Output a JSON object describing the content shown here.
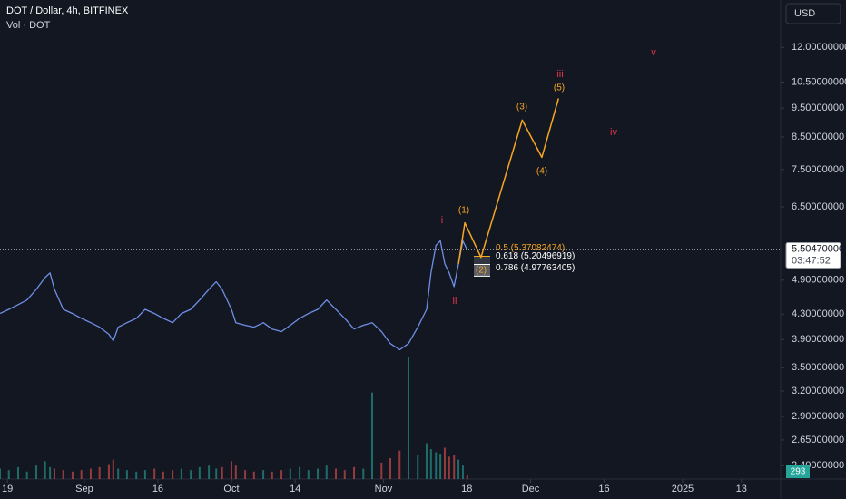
{
  "chart_data": {
    "type": "line",
    "title": "DOT / Dollar, 4h, BITFINEX",
    "subtitle": "Vol · DOT",
    "currency": "USD",
    "log_scale": true,
    "grid": false,
    "xlim": [
      -17.2,
      142
    ],
    "xticks": [
      {
        "value": -15.7,
        "label": "19"
      },
      {
        "value": 0,
        "label": "Sep"
      },
      {
        "value": 15,
        "label": "16"
      },
      {
        "value": 30,
        "label": "Oct"
      },
      {
        "value": 43,
        "label": "14"
      },
      {
        "value": 61,
        "label": "Nov"
      },
      {
        "value": 78,
        "label": "18"
      },
      {
        "value": 91,
        "label": "Dec"
      },
      {
        "value": 106,
        "label": "16"
      },
      {
        "value": 122,
        "label": "2025"
      },
      {
        "value": 134,
        "label": "13"
      }
    ],
    "ylim": [
      2.28,
      14.4
    ],
    "yticks": [
      {
        "value": 12,
        "label": "12.00000000"
      },
      {
        "value": 10.5,
        "label": "10.50000000"
      },
      {
        "value": 9.5,
        "label": "9.50000000"
      },
      {
        "value": 8.5,
        "label": "8.50000000"
      },
      {
        "value": 7.5,
        "label": "7.50000000"
      },
      {
        "value": 6.5,
        "label": "6.50000000"
      },
      {
        "value": 4.9,
        "label": "4.90000000"
      },
      {
        "value": 4.3,
        "label": "4.30000000"
      },
      {
        "value": 3.9,
        "label": "3.90000000"
      },
      {
        "value": 3.5,
        "label": "3.50000000"
      },
      {
        "value": 3.2,
        "label": "3.20000000"
      },
      {
        "value": 2.9,
        "label": "2.90000000"
      },
      {
        "value": 2.65,
        "label": "2.65000000"
      },
      {
        "value": 2.4,
        "label": "2.40000000"
      }
    ],
    "x": [
      -17.2,
      -15.4,
      -13.5,
      -11.7,
      -9.8,
      -8.0,
      -7.0,
      -6.1,
      -4.3,
      -2.4,
      -0.6,
      1.3,
      3.1,
      5.0,
      5.9,
      6.9,
      8.7,
      10.6,
      12.4,
      14.3,
      16.1,
      18.0,
      19.8,
      21.7,
      23.5,
      25.4,
      26.9,
      28.1,
      30.0,
      30.9,
      32.8,
      34.6,
      36.5,
      38.3,
      40.2,
      42.0,
      43.9,
      45.7,
      47.6,
      49.4,
      51.3,
      53.1,
      55.0,
      56.9,
      58.7,
      60.6,
      62.4,
      64.3,
      66.1,
      68.0,
      69.8,
      70.7,
      71.7,
      72.6,
      73.5,
      74.4,
      75.4,
      76.3,
      77.2,
      78.1
    ],
    "series": [
      {
        "color": "#6f8fe6",
        "values": [
          4.31,
          4.38,
          4.46,
          4.54,
          4.73,
          4.95,
          5.04,
          4.73,
          4.38,
          4.31,
          4.23,
          4.16,
          4.09,
          3.98,
          3.88,
          4.09,
          4.16,
          4.23,
          4.38,
          4.31,
          4.23,
          4.16,
          4.31,
          4.38,
          4.54,
          4.73,
          4.87,
          4.73,
          4.38,
          4.16,
          4.12,
          4.09,
          4.16,
          4.06,
          4.02,
          4.12,
          4.23,
          4.31,
          4.38,
          4.54,
          4.38,
          4.23,
          4.06,
          4.12,
          4.16,
          4.02,
          3.84,
          3.75,
          3.84,
          4.09,
          4.38,
          5.04,
          5.6,
          5.7,
          5.22,
          5.04,
          4.78,
          5.22,
          5.7,
          5.5
        ]
      }
    ],
    "volume": {
      "ylim": [
        0,
        14000
      ],
      "up_color": "#26a69a",
      "down_color": "#ef5350",
      "values": [
        700,
        600,
        800,
        500,
        900,
        1200,
        800,
        700,
        600,
        500,
        600,
        700,
        800,
        1000,
        1300,
        700,
        600,
        500,
        600,
        700,
        500,
        600,
        700,
        600,
        800,
        900,
        700,
        800,
        1200,
        900,
        600,
        500,
        600,
        500,
        600,
        700,
        800,
        600,
        700,
        900,
        700,
        600,
        800,
        700,
        5800,
        1100,
        1400,
        1900,
        8200,
        1600,
        2400,
        2000,
        1800,
        1700,
        2100,
        1500,
        1600,
        1300,
        900,
        293
      ]
    },
    "projection": {
      "color": "#f5a623",
      "x": [
        76.3,
        77.6,
        80.9,
        89.3,
        93.3,
        96.7
      ],
      "values": [
        5.22,
        6.11,
        5.35,
        9.07,
        7.86,
        9.86
      ]
    },
    "wave_labels": {
      "color": "#e5334b",
      "labels": [
        "i",
        "ii",
        "iii",
        "iv",
        "v"
      ]
    },
    "sub_wave_labels": {
      "color": "#f5a623",
      "labels": [
        "(1)",
        "(2)",
        "(3)",
        "(4)",
        "(5)"
      ]
    },
    "fib_levels": [
      {
        "value": 5.37082474,
        "label": "0.5 (5.37082474)",
        "color": "#f5a623"
      },
      {
        "value": 5.20496919,
        "label": "0.618 (5.20496919)",
        "color": "#ffffff"
      },
      {
        "value": 4.97763405,
        "label": "0.786 (4.97763405)",
        "color": "#ffffff"
      }
    ],
    "last_price": {
      "value": 5.5047,
      "label": "5.50470000",
      "countdown": "03:47:52"
    },
    "last_volume": 293
  }
}
